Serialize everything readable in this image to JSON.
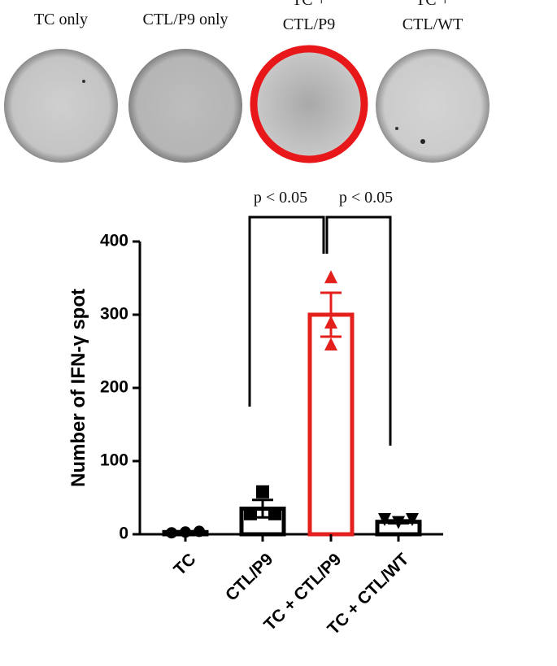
{
  "wells": [
    {
      "lines": [
        "TC only"
      ]
    },
    {
      "lines": [
        "CTL/P9 only"
      ]
    },
    {
      "lines": [
        "TC +",
        "CTL/P9"
      ]
    },
    {
      "lines": [
        "TC +",
        "CTL/WT"
      ]
    }
  ],
  "chart_data": {
    "type": "bar",
    "ylabel": "Number of IFN-γ spot",
    "categories": [
      "TC",
      "CTL/P9",
      "TC + CTL/P9",
      "TC + CTL/WT"
    ],
    "values": [
      3,
      35,
      300,
      17
    ],
    "error": [
      1,
      12,
      30,
      2
    ],
    "points": [
      [
        2,
        3,
        4
      ],
      [
        58,
        28,
        28
      ],
      [
        352,
        290,
        260
      ],
      [
        20,
        16,
        20
      ]
    ],
    "markers": [
      "circle",
      "square",
      "triangle",
      "triangle-down"
    ],
    "colors": [
      "#000000",
      "#000000",
      "#e3201b",
      "#000000"
    ],
    "ylim": [
      0,
      400
    ],
    "yticks": [
      0,
      100,
      200,
      300,
      400
    ],
    "annotations": [
      "p < 0.05",
      "p < 0.05"
    ]
  }
}
